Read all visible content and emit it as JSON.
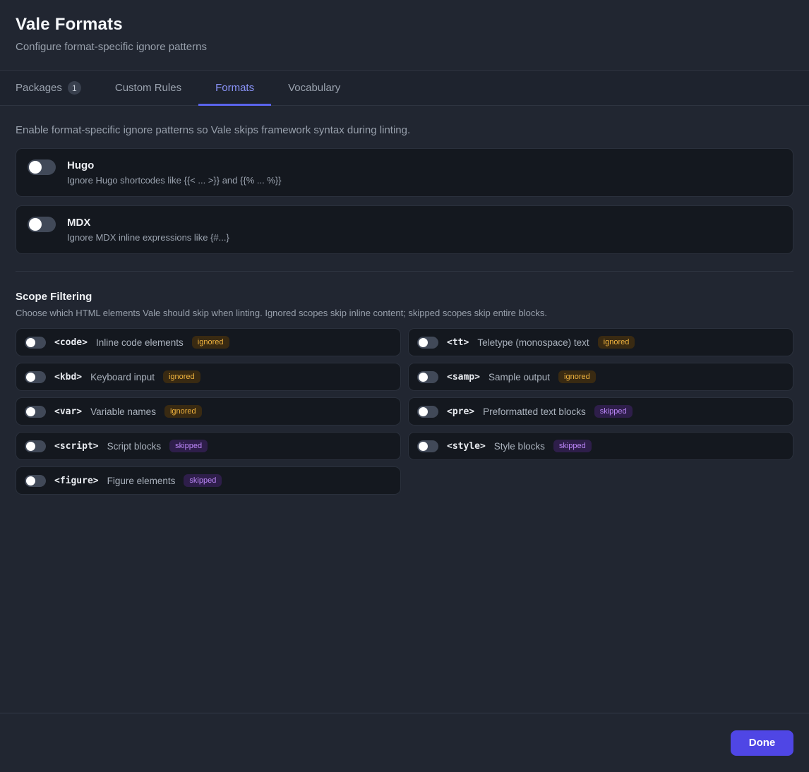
{
  "header": {
    "title": "Vale Formats",
    "subtitle": "Configure format-specific ignore patterns"
  },
  "tabs": [
    {
      "label": "Packages",
      "badge": "1",
      "active": false
    },
    {
      "label": "Custom Rules",
      "active": false
    },
    {
      "label": "Formats",
      "active": true
    },
    {
      "label": "Vocabulary",
      "active": false
    }
  ],
  "formats_section": {
    "intro": "Enable format-specific ignore patterns so Vale skips framework syntax during linting.",
    "items": [
      {
        "name": "Hugo",
        "description": "Ignore Hugo shortcodes like {{< ... >}} and {{% ... %}}",
        "enabled": false
      },
      {
        "name": "MDX",
        "description": "Ignore MDX inline expressions like {#...}",
        "enabled": false
      }
    ]
  },
  "scope_section": {
    "title": "Scope Filtering",
    "description": "Choose which HTML elements Vale should skip when linting. Ignored scopes skip inline content; skipped scopes skip entire blocks.",
    "items": [
      {
        "tag": "<code>",
        "label": "Inline code elements",
        "badge": "ignored",
        "enabled": false
      },
      {
        "tag": "<tt>",
        "label": "Teletype (monospace) text",
        "badge": "ignored",
        "enabled": false
      },
      {
        "tag": "<kbd>",
        "label": "Keyboard input",
        "badge": "ignored",
        "enabled": false
      },
      {
        "tag": "<samp>",
        "label": "Sample output",
        "badge": "ignored",
        "enabled": false
      },
      {
        "tag": "<var>",
        "label": "Variable names",
        "badge": "ignored",
        "enabled": false
      },
      {
        "tag": "<pre>",
        "label": "Preformatted text blocks",
        "badge": "skipped",
        "enabled": false
      },
      {
        "tag": "<script>",
        "label": "Script blocks",
        "badge": "skipped",
        "enabled": false
      },
      {
        "tag": "<style>",
        "label": "Style blocks",
        "badge": "skipped",
        "enabled": false
      },
      {
        "tag": "<figure>",
        "label": "Figure elements",
        "badge": "skipped",
        "enabled": false
      }
    ]
  },
  "footer": {
    "done_label": "Done"
  },
  "colors": {
    "accent_active_tab": "#8a93f8",
    "accent_underline": "#5a64ec",
    "done_button": "#4f46e5",
    "badge_ignored_text": "#f0b33e",
    "badge_skipped_text": "#bb86f7",
    "page_background": "#212631",
    "card_background": "#14181f"
  }
}
